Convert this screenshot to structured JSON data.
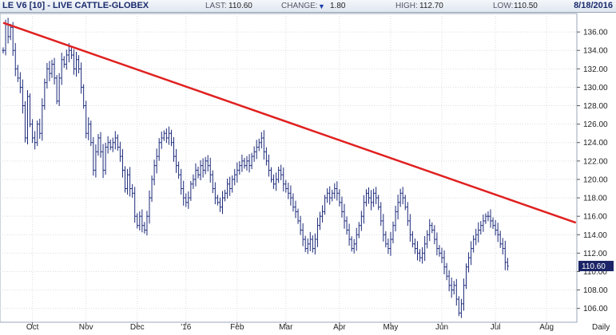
{
  "header": {
    "symbol": "LE V6 [10] - LIVE CATTLE-GLOBEX",
    "last_label": "LAST:",
    "last_value": "110.60",
    "change_label": "CHANGE:",
    "change_arrow": "▼",
    "change_value": "1.80",
    "high_label": "HIGH:",
    "high_value": "112.70",
    "low_label": "LOW:",
    "low_value": "110.50",
    "date": "8/18/2016"
  },
  "colors": {
    "bars": "#1c2a7a",
    "trendline": "#e02020",
    "grid": "#d9dde3",
    "last_price_tag": "#1a2466"
  },
  "chart_data": {
    "type": "ohlc",
    "period": "Daily",
    "last_price_label": "110.60",
    "ylim": [
      104.5,
      138.0
    ],
    "yticks": [
      106.0,
      108.0,
      110.0,
      112.0,
      114.0,
      116.0,
      118.0,
      120.0,
      122.0,
      124.0,
      126.0,
      128.0,
      130.0,
      132.0,
      134.0,
      136.0
    ],
    "ytick_labels": [
      "106.00",
      "108.00",
      "110.00",
      "112.00",
      "114.00",
      "116.00",
      "118.00",
      "120.00",
      "122.00",
      "124.00",
      "126.00",
      "128.00",
      "130.00",
      "132.00",
      "134.00",
      "136.00"
    ],
    "xticks": [
      {
        "label": "Oct",
        "idx": 12
      },
      {
        "label": "Nov",
        "idx": 34
      },
      {
        "label": "Dec",
        "idx": 55
      },
      {
        "label": "'16",
        "idx": 75
      },
      {
        "label": "Feb",
        "idx": 96
      },
      {
        "label": "Mar",
        "idx": 116
      },
      {
        "label": "Apr",
        "idx": 138
      },
      {
        "label": "May",
        "idx": 159
      },
      {
        "label": "Jun",
        "idx": 180
      },
      {
        "label": "Jul",
        "idx": 202
      },
      {
        "label": "Aug",
        "idx": 223
      }
    ],
    "trendline": {
      "from": {
        "idx": 0,
        "price": 137.0
      },
      "to": {
        "idx": 235,
        "price": 115.3
      }
    },
    "closes": [
      134.0,
      136.8,
      135.5,
      136.5,
      134.0,
      132.0,
      131.0,
      130.0,
      128.0,
      124.5,
      129.0,
      126.0,
      124.5,
      124.0,
      126.0,
      125.0,
      128.0,
      130.5,
      132.0,
      131.5,
      132.5,
      131.0,
      128.5,
      131.0,
      133.0,
      132.5,
      133.5,
      134.0,
      133.5,
      132.0,
      133.0,
      132.0,
      130.0,
      128.0,
      125.0,
      126.0,
      124.0,
      121.0,
      123.0,
      124.5,
      123.0,
      121.0,
      123.5,
      124.0,
      123.5,
      124.0,
      124.5,
      123.5,
      122.5,
      121.0,
      119.0,
      120.5,
      119.0,
      118.5,
      116.0,
      115.0,
      116.0,
      115.0,
      114.5,
      116.0,
      118.0,
      120.0,
      121.5,
      122.5,
      124.0,
      124.5,
      125.0,
      124.5,
      125.0,
      124.0,
      122.5,
      121.5,
      120.5,
      119.0,
      118.0,
      117.5,
      118.0,
      119.5,
      120.0,
      121.0,
      120.5,
      121.5,
      121.0,
      122.0,
      121.5,
      120.5,
      119.0,
      118.0,
      117.5,
      117.0,
      118.0,
      118.5,
      119.5,
      119.0,
      120.0,
      120.5,
      121.0,
      121.5,
      122.0,
      121.5,
      122.0,
      121.5,
      122.5,
      123.0,
      123.5,
      124.0,
      124.5,
      123.0,
      122.0,
      121.0,
      120.0,
      119.5,
      120.0,
      121.0,
      120.5,
      119.5,
      119.0,
      118.5,
      118.0,
      117.0,
      116.5,
      115.5,
      114.5,
      113.5,
      112.5,
      113.0,
      113.5,
      112.5,
      113.5,
      115.0,
      116.0,
      116.5,
      118.0,
      118.5,
      118.0,
      118.5,
      119.0,
      118.5,
      117.5,
      116.5,
      115.5,
      114.5,
      113.5,
      112.5,
      113.0,
      114.0,
      115.0,
      116.0,
      117.5,
      118.5,
      118.0,
      117.5,
      118.5,
      118.0,
      117.0,
      115.5,
      114.0,
      113.0,
      112.5,
      113.5,
      115.0,
      116.5,
      117.5,
      118.5,
      118.0,
      117.0,
      115.5,
      114.0,
      113.0,
      112.5,
      112.0,
      111.5,
      112.0,
      113.0,
      114.0,
      115.0,
      114.5,
      113.5,
      112.5,
      112.0,
      111.5,
      110.5,
      109.5,
      108.5,
      108.0,
      108.5,
      107.0,
      105.5,
      106.5,
      108.5,
      110.5,
      111.5,
      112.5,
      113.5,
      114.0,
      114.5,
      115.0,
      115.5,
      116.0,
      116.0,
      115.5,
      115.0,
      114.5,
      114.0,
      113.0,
      112.5,
      111.0,
      110.6
    ]
  }
}
